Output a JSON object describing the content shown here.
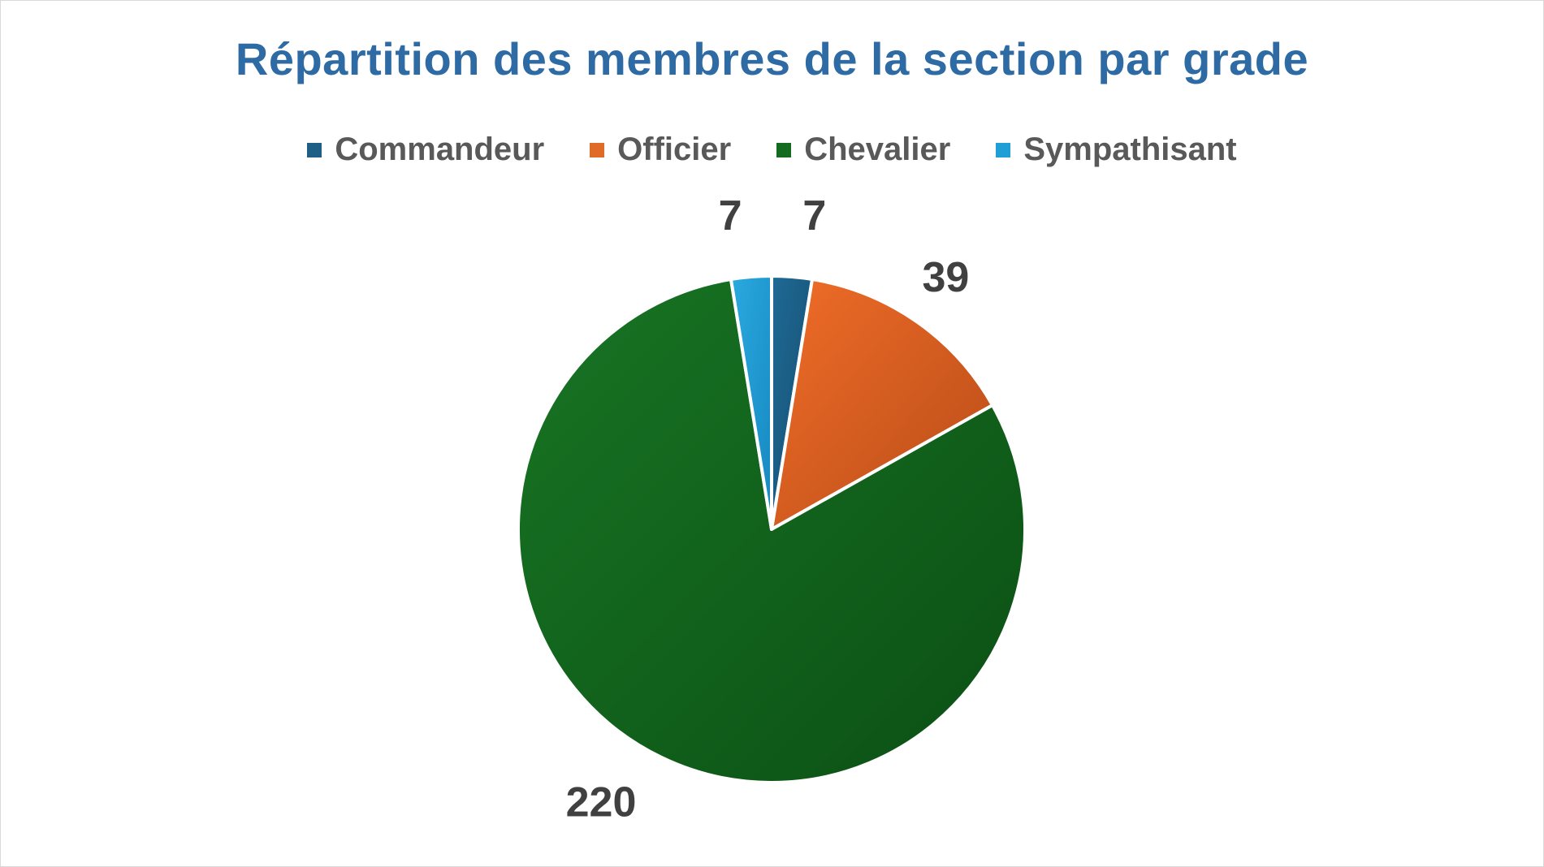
{
  "chart_data": {
    "type": "pie",
    "title": "Répartition des membres de la section par grade",
    "categories": [
      "Commandeur",
      "Officier",
      "Chevalier",
      "Sympathisant"
    ],
    "values": [
      7,
      39,
      220,
      7
    ],
    "colors": [
      "#1f5e85",
      "#e06a28",
      "#146b1f",
      "#1f9fd6"
    ],
    "data_labels": [
      "7",
      "39",
      "220",
      "7"
    ],
    "legend_placement": "top"
  }
}
